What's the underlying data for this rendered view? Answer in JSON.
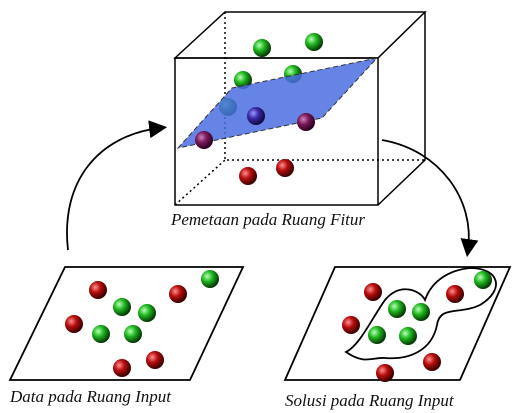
{
  "figure": {
    "feature_space_label": "Pemetaan pada Ruang Fitur",
    "input_data_label": "Data pada Ruang Input",
    "solution_label": "Solusi pada Ruang Input"
  }
}
